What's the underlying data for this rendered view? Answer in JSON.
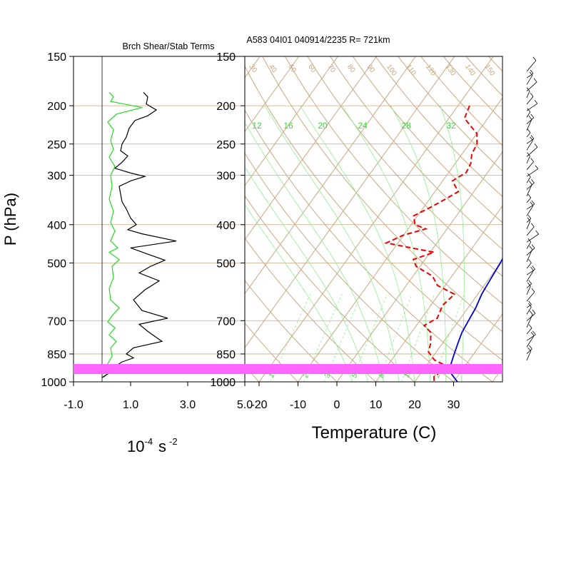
{
  "title_left": "Brch Shear/Stab Terms",
  "title_right": "A583 04I01 040914/2235 R= 721km",
  "colors": {
    "grid": "#c8a882",
    "moist": "#90ee90",
    "mix_label": "#33dd33",
    "temp": "#0000dd",
    "dew": "#ee0000",
    "shear": "#000000",
    "stab": "#22dd22",
    "highlight": "#ff66ff",
    "barb": "#000000"
  },
  "chart_data": [
    {
      "type": "line",
      "name": "shear-stability-panel",
      "title": "Brch Shear/Stab Terms",
      "ylabel": "P (hPa)",
      "xlabel_base": "10",
      "xlabel_exp": "-4",
      "xlabel_unit": "s",
      "xlabel_unit_exp": "-2",
      "y_scale": "log",
      "ylim": [
        1000,
        150
      ],
      "xlim": [
        -1.0,
        5.0
      ],
      "xtick_labels": [
        "-1.0",
        "1.0",
        "3.0",
        "5.0"
      ],
      "xticks": [
        -1.0,
        1.0,
        3.0,
        5.0
      ],
      "ytick_labels": [
        "150",
        "200",
        "250",
        "300",
        "400",
        "500",
        "700",
        "850",
        "1000"
      ],
      "yticks": [
        150,
        200,
        250,
        300,
        400,
        500,
        700,
        850,
        1000
      ],
      "series": [
        {
          "name": "shear",
          "points": [
            [
              1.45,
              185
            ],
            [
              1.6,
              190
            ],
            [
              1.55,
              198
            ],
            [
              1.9,
              205
            ],
            [
              1.6,
              212
            ],
            [
              1.15,
              218
            ],
            [
              0.95,
              228
            ],
            [
              0.85,
              240
            ],
            [
              0.7,
              250
            ],
            [
              0.65,
              260
            ],
            [
              0.9,
              268
            ],
            [
              0.7,
              278
            ],
            [
              0.45,
              288
            ],
            [
              1.0,
              296
            ],
            [
              1.5,
              302
            ],
            [
              1.0,
              310
            ],
            [
              0.6,
              320
            ],
            [
              0.65,
              335
            ],
            [
              0.7,
              350
            ],
            [
              0.85,
              365
            ],
            [
              1.0,
              385
            ],
            [
              1.2,
              400
            ],
            [
              0.9,
              412
            ],
            [
              1.4,
              422
            ],
            [
              2.6,
              440
            ],
            [
              1.0,
              458
            ],
            [
              1.6,
              475
            ],
            [
              2.2,
              492
            ],
            [
              1.7,
              510
            ],
            [
              1.3,
              530
            ],
            [
              2.0,
              555
            ],
            [
              1.5,
              585
            ],
            [
              1.1,
              620
            ],
            [
              1.4,
              660
            ],
            [
              2.3,
              690
            ],
            [
              1.3,
              715
            ],
            [
              1.6,
              745
            ],
            [
              2.1,
              790
            ],
            [
              1.1,
              820
            ],
            [
              0.85,
              850
            ],
            [
              1.1,
              870
            ],
            [
              0.7,
              890
            ],
            [
              0.45,
              915
            ],
            [
              0.55,
              935
            ],
            [
              0.2,
              955
            ],
            [
              0.0,
              975
            ]
          ]
        },
        {
          "name": "stab",
          "points": [
            [
              0.25,
              185
            ],
            [
              0.4,
              190
            ],
            [
              0.3,
              195
            ],
            [
              1.4,
              202
            ],
            [
              0.5,
              210
            ],
            [
              0.2,
              220
            ],
            [
              0.4,
              230
            ],
            [
              0.3,
              245
            ],
            [
              0.4,
              258
            ],
            [
              0.25,
              270
            ],
            [
              0.45,
              285
            ],
            [
              0.3,
              300
            ],
            [
              0.35,
              320
            ],
            [
              0.25,
              345
            ],
            [
              0.4,
              370
            ],
            [
              0.3,
              395
            ],
            [
              0.45,
              415
            ],
            [
              0.3,
              440
            ],
            [
              0.55,
              458
            ],
            [
              0.25,
              470
            ],
            [
              0.6,
              490
            ],
            [
              0.35,
              510
            ],
            [
              0.4,
              545
            ],
            [
              0.25,
              580
            ],
            [
              0.3,
              620
            ],
            [
              0.6,
              650
            ],
            [
              0.35,
              680
            ],
            [
              0.2,
              705
            ],
            [
              0.45,
              730
            ],
            [
              0.25,
              760
            ],
            [
              0.5,
              790
            ],
            [
              0.3,
              820
            ],
            [
              0.35,
              860
            ],
            [
              0.2,
              900
            ],
            [
              0.3,
              940
            ],
            [
              0.05,
              975
            ]
          ]
        }
      ]
    },
    {
      "type": "line",
      "name": "skew-t-diagram",
      "xlabel": "Temperature (C)",
      "y_scale": "log",
      "ylim": [
        1000,
        150
      ],
      "xlim": [
        -23,
        42
      ],
      "xtick_labels": [
        "-20",
        "-10",
        "0",
        "10",
        "20",
        "30"
      ],
      "xticks": [
        -20,
        -10,
        0,
        10,
        20,
        30
      ],
      "ytick_labels": [
        "150",
        "200",
        "250",
        "300",
        "400",
        "500",
        "700",
        "850",
        "1000"
      ],
      "yticks": [
        150,
        200,
        250,
        300,
        400,
        500,
        700,
        850,
        1000
      ],
      "theta_labels": [
        "30",
        "40",
        "50",
        "60",
        "70",
        "80",
        "90",
        "100",
        "110",
        "120",
        "130",
        "140",
        "150"
      ],
      "mixing_top_labels": [
        "12",
        "16",
        "20",
        "24",
        "28",
        "32"
      ],
      "mixing_bottom_labels": [
        "1",
        "2",
        "3",
        "5",
        "8",
        "12",
        "20"
      ],
      "series": [
        {
          "name": "temperature",
          "points": [
            [
              0.5,
              180
            ],
            [
              1.5,
              200
            ],
            [
              5,
              230
            ],
            [
              9,
              260
            ],
            [
              12,
              290
            ],
            [
              14,
              320
            ],
            [
              16,
              350
            ],
            [
              18,
              380
            ],
            [
              19,
              410
            ],
            [
              18.5,
              440
            ],
            [
              19.5,
              470
            ],
            [
              20,
              500
            ],
            [
              20.5,
              550
            ],
            [
              21,
              600
            ],
            [
              22,
              650
            ],
            [
              22.5,
              700
            ],
            [
              23,
              750
            ],
            [
              24,
              800
            ],
            [
              25,
              850
            ],
            [
              26,
              900
            ],
            [
              27,
              940
            ],
            [
              29,
              970
            ],
            [
              31,
              1000
            ]
          ]
        },
        {
          "name": "dewpoint",
          "points": [
            [
              -17,
              200
            ],
            [
              -16,
              215
            ],
            [
              -13,
              225
            ],
            [
              -10,
              235
            ],
            [
              -8,
              250
            ],
            [
              -7.5,
              265
            ],
            [
              -6,
              280
            ],
            [
              -5.5,
              295
            ],
            [
              -7.5,
              310
            ],
            [
              -4,
              330
            ],
            [
              -6,
              345
            ],
            [
              -8,
              360
            ],
            [
              -11,
              380
            ],
            [
              -9,
              400
            ],
            [
              -5.5,
              410
            ],
            [
              -10,
              425
            ],
            [
              -13,
              445
            ],
            [
              1,
              470
            ],
            [
              -3,
              490
            ],
            [
              -1,
              510
            ],
            [
              5,
              540
            ],
            [
              8,
              570
            ],
            [
              14,
              600
            ],
            [
              13,
              640
            ],
            [
              14,
              690
            ],
            [
              12,
              720
            ],
            [
              15,
              750
            ],
            [
              17,
              800
            ],
            [
              18,
              840
            ],
            [
              21,
              880
            ],
            [
              25,
              910
            ],
            [
              25,
              940
            ],
            [
              24,
              970
            ],
            [
              25,
              1000
            ]
          ]
        }
      ]
    }
  ]
}
